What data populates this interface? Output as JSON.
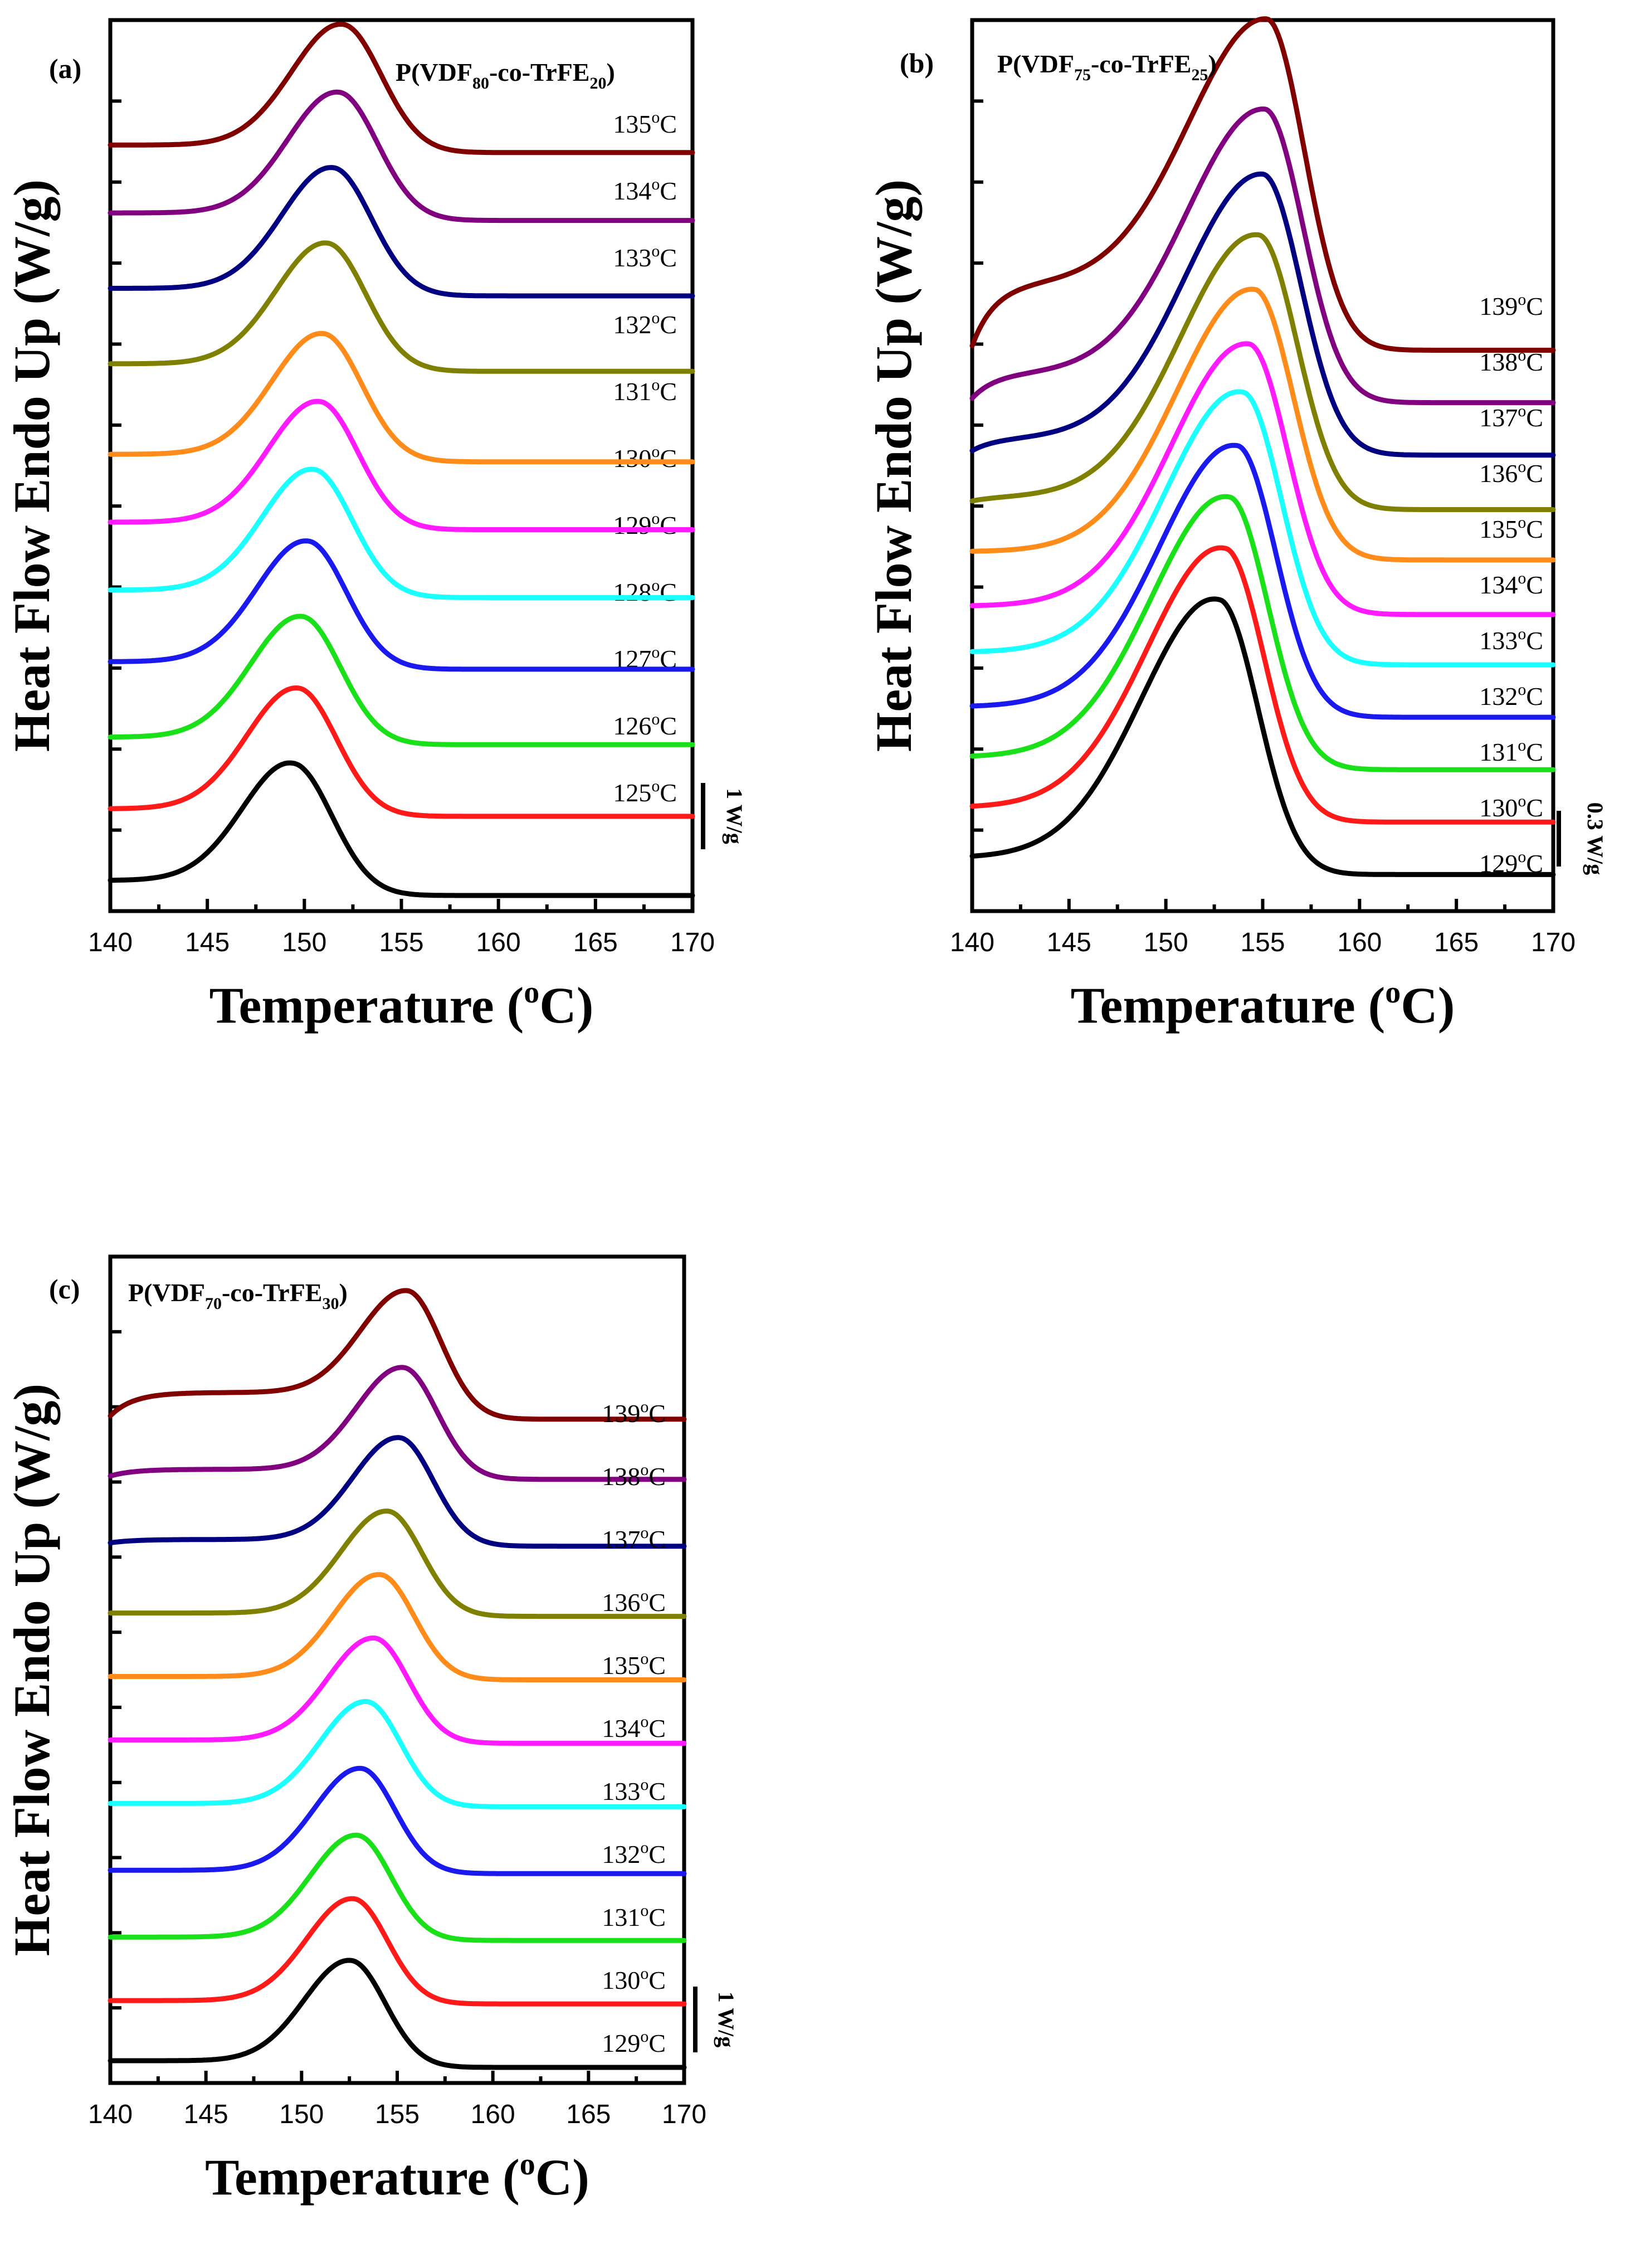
{
  "colors": [
    "#000000",
    "#ff1a1a",
    "#1ae01a",
    "#1a1aee",
    "#1affff",
    "#ff1aff",
    "#ff8c1a",
    "#808000",
    "#000080",
    "#800080",
    "#800000"
  ],
  "chart_data": [
    {
      "type": "line",
      "panel": "(a)",
      "title": {
        "prefix": "P(VDF",
        "sub1": "80",
        "mid": "-co-TrFE",
        "sub2": "20",
        "suffix": ")"
      },
      "xlabel": "Temperature (",
      "xlabel_sup": "o",
      "xlabel_tail": "C)",
      "ylabel": "Heat Flow Endo Up (W/g)",
      "xlim": [
        140,
        170
      ],
      "xticks": [
        "140",
        "145",
        "150",
        "155",
        "160",
        "165",
        "170"
      ],
      "scale_bar": "1 W/g",
      "scale_bar_value": 1.0,
      "ylim": [
        0,
        11.4
      ],
      "series": [
        {
          "name": "125oC",
          "label": "125",
          "unit": "C",
          "baseline_left": 0.2,
          "baseline_right": 0.0,
          "peak_x": 149.5,
          "peak_height": 1.65,
          "width_left": 2.6,
          "width_right": 2.0,
          "shoulder": 0
        },
        {
          "name": "126oC",
          "label": "126",
          "unit": "C",
          "baseline_left": 1.15,
          "baseline_right": 1.05,
          "peak_x": 149.7,
          "peak_height": 1.65,
          "width_left": 2.6,
          "width_right": 2.0,
          "shoulder": 0
        },
        {
          "name": "127oC",
          "label": "127",
          "unit": "C",
          "baseline_left": 2.1,
          "baseline_right": 2.0,
          "peak_x": 149.9,
          "peak_height": 1.65,
          "width_left": 2.6,
          "width_right": 2.0,
          "shoulder": 0
        },
        {
          "name": "128oC",
          "label": "128",
          "unit": "C",
          "baseline_left": 3.1,
          "baseline_right": 3.0,
          "peak_x": 150.2,
          "peak_height": 1.65,
          "width_left": 2.6,
          "width_right": 2.0,
          "shoulder": 0
        },
        {
          "name": "129oC",
          "label": "129",
          "unit": "C",
          "baseline_left": 4.05,
          "baseline_right": 3.95,
          "peak_x": 150.5,
          "peak_height": 1.65,
          "width_left": 2.6,
          "width_right": 2.0,
          "shoulder": 0
        },
        {
          "name": "130oC",
          "label": "130",
          "unit": "C",
          "baseline_left": 4.95,
          "baseline_right": 4.85,
          "peak_x": 150.8,
          "peak_height": 1.65,
          "width_left": 2.6,
          "width_right": 2.0,
          "shoulder": 0
        },
        {
          "name": "131oC",
          "label": "131",
          "unit": "C",
          "baseline_left": 5.85,
          "baseline_right": 5.75,
          "peak_x": 151.0,
          "peak_height": 1.65,
          "width_left": 2.6,
          "width_right": 2.0,
          "shoulder": 0
        },
        {
          "name": "132oC",
          "label": "132",
          "unit": "C",
          "baseline_left": 7.05,
          "baseline_right": 6.95,
          "peak_x": 151.2,
          "peak_height": 1.65,
          "width_left": 2.6,
          "width_right": 2.0,
          "shoulder": 0
        },
        {
          "name": "133oC",
          "label": "133",
          "unit": "C",
          "baseline_left": 8.05,
          "baseline_right": 7.95,
          "peak_x": 151.5,
          "peak_height": 1.65,
          "width_left": 2.6,
          "width_right": 2.0,
          "shoulder": 0
        },
        {
          "name": "134oC",
          "label": "134",
          "unit": "C",
          "baseline_left": 9.05,
          "baseline_right": 8.95,
          "peak_x": 151.8,
          "peak_height": 1.65,
          "width_left": 2.6,
          "width_right": 2.0,
          "shoulder": 0
        },
        {
          "name": "135oC",
          "label": "135",
          "unit": "C",
          "baseline_left": 9.95,
          "baseline_right": 9.85,
          "peak_x": 152.0,
          "peak_height": 1.65,
          "width_left": 2.6,
          "width_right": 2.0,
          "shoulder": 0
        }
      ]
    },
    {
      "type": "line",
      "panel": "(b)",
      "title": {
        "prefix": "P(VDF",
        "sub1": "75",
        "mid": "-co-TrFE",
        "sub2": "25",
        "suffix": ")"
      },
      "xlabel": "Temperature (",
      "xlabel_sup": "o",
      "xlabel_tail": "C)",
      "ylabel": "Heat Flow Endo Up (W/g)",
      "xlim": [
        140,
        170
      ],
      "xticks": [
        "140",
        "145",
        "150",
        "155",
        "160",
        "165",
        "170"
      ],
      "scale_bar": "0.3 W/g",
      "scale_bar_value": 0.3,
      "ylim": [
        0,
        4.1
      ],
      "series": [
        {
          "name": "129oC",
          "label": "129",
          "unit": "C",
          "baseline_left": 0.18,
          "baseline_right": 0.1,
          "peak_x": 152.8,
          "peak_height": 1.27,
          "width_left": 4.0,
          "width_right": 2.0,
          "shoulder": 0
        },
        {
          "name": "130oC",
          "label": "130",
          "unit": "C",
          "baseline_left": 0.42,
          "baseline_right": 0.35,
          "peak_x": 153.1,
          "peak_height": 1.27,
          "width_left": 4.0,
          "width_right": 2.0,
          "shoulder": 0
        },
        {
          "name": "131oC",
          "label": "131",
          "unit": "C",
          "baseline_left": 0.66,
          "baseline_right": 0.6,
          "peak_x": 153.3,
          "peak_height": 1.27,
          "width_left": 4.0,
          "width_right": 2.0,
          "shoulder": 0
        },
        {
          "name": "132oC",
          "label": "132",
          "unit": "C",
          "baseline_left": 0.9,
          "baseline_right": 0.85,
          "peak_x": 153.7,
          "peak_height": 1.27,
          "width_left": 4.0,
          "width_right": 2.0,
          "shoulder": 0
        },
        {
          "name": "133oC",
          "label": "133",
          "unit": "C",
          "baseline_left": 1.16,
          "baseline_right": 1.1,
          "peak_x": 154.0,
          "peak_height": 1.27,
          "width_left": 4.0,
          "width_right": 2.0,
          "shoulder": 0
        },
        {
          "name": "134oC",
          "label": "134",
          "unit": "C",
          "baseline_left": 1.38,
          "baseline_right": 1.34,
          "peak_x": 154.3,
          "peak_height": 1.27,
          "width_left": 4.0,
          "width_right": 2.0,
          "shoulder": 0
        },
        {
          "name": "135oC",
          "label": "135",
          "unit": "C",
          "baseline_left": 1.64,
          "baseline_right": 1.6,
          "peak_x": 154.6,
          "peak_height": 1.27,
          "width_left": 4.0,
          "width_right": 2.0,
          "shoulder": 0
        },
        {
          "name": "136oC",
          "label": "136",
          "unit": "C",
          "baseline_left": 1.88,
          "baseline_right": 1.84,
          "peak_x": 154.8,
          "peak_height": 1.27,
          "width_left": 4.0,
          "width_right": 2.0,
          "shoulder": 0.02
        },
        {
          "name": "137oC",
          "label": "137",
          "unit": "C",
          "baseline_left": 2.12,
          "baseline_right": 2.1,
          "peak_x": 155.0,
          "peak_height": 1.27,
          "width_left": 4.0,
          "width_right": 2.0,
          "shoulder": 0.06
        },
        {
          "name": "138oC",
          "label": "138",
          "unit": "C",
          "baseline_left": 2.37,
          "baseline_right": 2.35,
          "peak_x": 155.1,
          "peak_height": 1.27,
          "width_left": 4.0,
          "width_right": 2.0,
          "shoulder": 0.12
        },
        {
          "name": "139oC",
          "label": "139",
          "unit": "C",
          "baseline_left": 2.62,
          "baseline_right": 2.6,
          "peak_x": 155.2,
          "peak_height": 1.27,
          "width_left": 4.0,
          "width_right": 2.0,
          "shoulder": 0.3
        }
      ]
    },
    {
      "type": "line",
      "panel": "(c)",
      "title": {
        "prefix": "P(VDF",
        "sub1": "70",
        "mid": "-co-TrFE",
        "sub2": "30",
        "suffix": ")"
      },
      "xlabel": "Temperature (",
      "xlabel_sup": "o",
      "xlabel_tail": "C)",
      "ylabel": "Heat Flow Endo Up (W/g)",
      "xlim": [
        140,
        170
      ],
      "xticks": [
        "140",
        "145",
        "150",
        "155",
        "160",
        "165",
        "170"
      ],
      "scale_bar": "1 W/g",
      "scale_bar_value": 1.0,
      "ylim": [
        0,
        11.9
      ],
      "series": [
        {
          "name": "129oC",
          "label": "129",
          "unit": "C",
          "baseline_left": 0.1,
          "baseline_right": 0.0,
          "peak_x": 152.6,
          "peak_height": 1.55,
          "width_left": 2.4,
          "width_right": 1.8,
          "shoulder": 0
        },
        {
          "name": "130oC",
          "label": "130",
          "unit": "C",
          "baseline_left": 1.0,
          "baseline_right": 0.95,
          "peak_x": 152.7,
          "peak_height": 1.55,
          "width_left": 2.4,
          "width_right": 1.8,
          "shoulder": 0
        },
        {
          "name": "131oC",
          "label": "131",
          "unit": "C",
          "baseline_left": 1.95,
          "baseline_right": 1.9,
          "peak_x": 152.9,
          "peak_height": 1.55,
          "width_left": 2.4,
          "width_right": 1.8,
          "shoulder": 0
        },
        {
          "name": "132oC",
          "label": "132",
          "unit": "C",
          "baseline_left": 2.95,
          "baseline_right": 2.9,
          "peak_x": 153.1,
          "peak_height": 1.55,
          "width_left": 2.4,
          "width_right": 1.8,
          "shoulder": 0
        },
        {
          "name": "133oC",
          "label": "133",
          "unit": "C",
          "baseline_left": 3.95,
          "baseline_right": 3.9,
          "peak_x": 153.4,
          "peak_height": 1.55,
          "width_left": 2.4,
          "width_right": 1.8,
          "shoulder": 0
        },
        {
          "name": "134oC",
          "label": "134",
          "unit": "C",
          "baseline_left": 4.9,
          "baseline_right": 4.85,
          "peak_x": 153.8,
          "peak_height": 1.55,
          "width_left": 2.4,
          "width_right": 1.8,
          "shoulder": 0
        },
        {
          "name": "135oC",
          "label": "135",
          "unit": "C",
          "baseline_left": 5.85,
          "baseline_right": 5.8,
          "peak_x": 154.1,
          "peak_height": 1.55,
          "width_left": 2.4,
          "width_right": 1.8,
          "shoulder": 0
        },
        {
          "name": "136oC",
          "label": "136",
          "unit": "C",
          "baseline_left": 6.8,
          "baseline_right": 6.75,
          "peak_x": 154.5,
          "peak_height": 1.55,
          "width_left": 2.4,
          "width_right": 1.8,
          "shoulder": 0
        },
        {
          "name": "137oC",
          "label": "137",
          "unit": "C",
          "baseline_left": 7.85,
          "baseline_right": 7.8,
          "peak_x": 155.1,
          "peak_height": 1.55,
          "width_left": 2.4,
          "width_right": 1.8,
          "shoulder": 0.05
        },
        {
          "name": "138oC",
          "label": "138",
          "unit": "C",
          "baseline_left": 8.85,
          "baseline_right": 8.8,
          "peak_x": 155.3,
          "peak_height": 1.55,
          "width_left": 2.4,
          "width_right": 1.8,
          "shoulder": 0.1
        },
        {
          "name": "139oC",
          "label": "139",
          "unit": "C",
          "baseline_left": 9.75,
          "baseline_right": 9.7,
          "peak_x": 155.5,
          "peak_height": 1.55,
          "width_left": 2.4,
          "width_right": 1.8,
          "shoulder": 0.35
        }
      ]
    }
  ]
}
